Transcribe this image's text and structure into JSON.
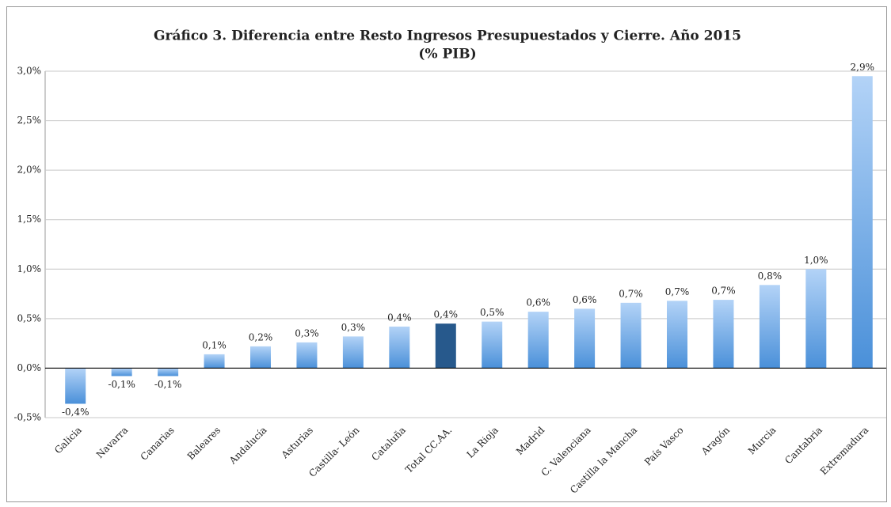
{
  "chart_data": {
    "type": "bar",
    "title": "Gráfico 3. Diferencia entre Resto Ingresos Presupuestados y Cierre. Año 2015",
    "subtitle": "(% PIB)",
    "categories": [
      "Galicia",
      "Navarra",
      "Canarias",
      "Baleares",
      "Andalucía",
      "Asturias",
      "Castilla- León",
      "Cataluña",
      "Total CC.AA.",
      "La Rioja",
      "Madrid",
      "C. Valenciana",
      "Castilla la Mancha",
      "País Vasco",
      "Aragón",
      "Murcia",
      "Cantabria",
      "Extremadura"
    ],
    "values": [
      -0.36,
      -0.08,
      -0.08,
      0.14,
      0.22,
      0.26,
      0.32,
      0.42,
      0.45,
      0.47,
      0.57,
      0.6,
      0.66,
      0.68,
      0.69,
      0.84,
      1.0,
      2.95
    ],
    "value_labels": [
      "-0,4%",
      "-0,1%",
      "-0,1%",
      "0,1%",
      "0,2%",
      "0,3%",
      "0,3%",
      "0,4%",
      "0,4%",
      "0,5%",
      "0,6%",
      "0,6%",
      "0,7%",
      "0,7%",
      "0,7%",
      "0,8%",
      "1,0%",
      "2,9%"
    ],
    "colors": [
      "#4a90d9",
      "#4a90d9",
      "#4a90d9",
      "#4a90d9",
      "#4a90d9",
      "#4a90d9",
      "#4a90d9",
      "#4a90d9",
      "#27598c",
      "#4a90d9",
      "#4a90d9",
      "#4a90d9",
      "#4a90d9",
      "#4a90d9",
      "#4a90d9",
      "#4a90d9",
      "#4a90d9",
      "#4a90d9"
    ],
    "ylim": [
      -0.5,
      3.0
    ],
    "yticks": [
      {
        "value": -0.5,
        "label": "-0,5%"
      },
      {
        "value": 0,
        "label": "0,0%"
      },
      {
        "value": 0.5,
        "label": "0,5%"
      },
      {
        "value": 1.0,
        "label": "1,0%"
      },
      {
        "value": 1.5,
        "label": "1,5%"
      },
      {
        "value": 2.0,
        "label": "2,0%"
      },
      {
        "value": 2.5,
        "label": "2,5%"
      },
      {
        "value": 3.0,
        "label": "3,0%"
      }
    ],
    "grid": true
  }
}
